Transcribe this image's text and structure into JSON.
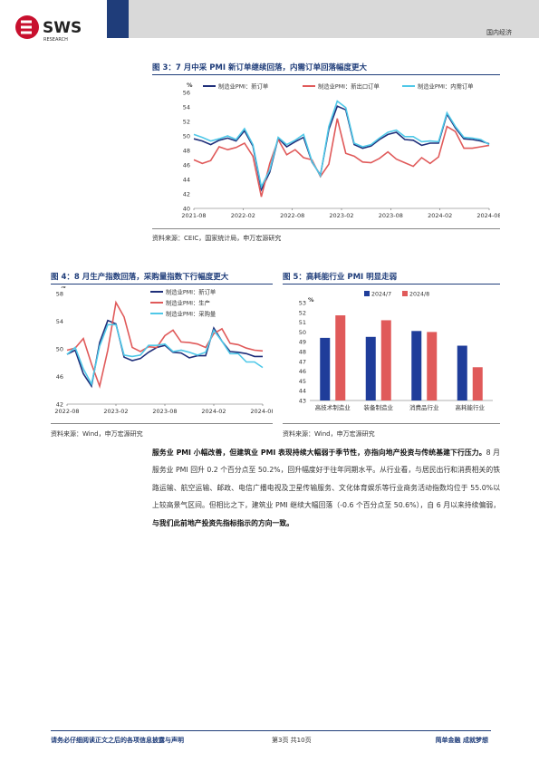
{
  "header": {
    "logo_text": "SWS",
    "logo_sub": "RESEARCH",
    "section": "国内经济"
  },
  "fig3": {
    "title": "图 3：7 月中采 PMI 新订单继续回落，内需订单回落幅度更大",
    "source": "资料来源：CEIC，国家统计局，申万宏源研究"
  },
  "fig4": {
    "title": "图 4：8 月生产指数回落，采购量指数下行幅度更大",
    "source": "资料来源：Wind，申万宏源研究"
  },
  "fig5": {
    "title": "图 5：高耗能行业 PMI 明显走弱",
    "source": "资料来源：Wind，申万宏源研究"
  },
  "body": {
    "lead": "服务业 PMI 小幅改善，但建筑业 PMI 表现持续大幅弱于季节性，亦指向地产投资与传统基建下行压力。",
    "middle": "8 月服务业 PMI 回升 0.2 个百分点至 50.2%，回升幅度好于往年同期水平。从行业看，与居民出行和消费相关的铁路运输、航空运输、邮政、电信广播电视及卫星传输服务、文化体育娱乐等行业商务活动指数均位于 55.0%以上较高景气区间。但相比之下，建筑业 PMI 继续大幅回落（-0.6 个百分点至 50.6%），自 6 月以来持续偏弱，",
    "tail": "与我们此前地产投资先指标指示的方向一致。"
  },
  "footer": {
    "left": "请务必仔细阅读正文之后的各项信息披露与声明",
    "center": "第3页 共10页",
    "right": "简单金融 成就梦想"
  },
  "colors": {
    "navy": "#1f2f7a",
    "red": "#e05a5a",
    "cyan": "#4fc8e8",
    "blue_bar": "#1f3d9a"
  },
  "chart_data": [
    {
      "type": "line",
      "unit": "%",
      "x_ticks": [
        "2021-08",
        "2022-02",
        "2022-08",
        "2023-02",
        "2023-08",
        "2024-02",
        "2024-08"
      ],
      "ylim": [
        40,
        56
      ],
      "y_ticks": [
        40,
        42,
        44,
        46,
        48,
        50,
        52,
        54,
        56
      ],
      "series": [
        {
          "name": "制造业PMI：新订单",
          "color": "#1f2f7a",
          "values": [
            49.6,
            49.3,
            48.8,
            49.4,
            49.7,
            49.3,
            50.7,
            48.6,
            42.6,
            45.0,
            49.7,
            48.5,
            49.2,
            49.8,
            46.4,
            44.6,
            50.9,
            54.1,
            53.6,
            48.8,
            48.3,
            48.6,
            49.5,
            50.2,
            50.5,
            49.5,
            49.4,
            48.7,
            49.0,
            49.0,
            53.0,
            51.1,
            49.6,
            49.5,
            49.3,
            48.9
          ]
        },
        {
          "name": "制造业PMI：新出口订单",
          "color": "#e05a5a",
          "values": [
            46.7,
            46.2,
            46.6,
            48.5,
            48.1,
            48.4,
            49.0,
            47.2,
            41.6,
            46.2,
            49.5,
            47.4,
            48.1,
            47.0,
            46.7,
            44.4,
            46.1,
            52.4,
            47.6,
            47.2,
            46.4,
            46.3,
            46.9,
            47.8,
            46.8,
            46.3,
            45.8,
            47.0,
            46.2,
            47.1,
            51.3,
            50.6,
            48.3,
            48.3,
            48.5,
            48.7
          ]
        },
        {
          "name": "制造业PMI：内需订单",
          "color": "#4fc8e8",
          "values": [
            50.2,
            49.8,
            49.3,
            49.6,
            50.0,
            49.5,
            51.0,
            48.8,
            43.0,
            45.3,
            49.8,
            48.8,
            49.4,
            50.2,
            46.5,
            44.5,
            51.3,
            54.8,
            53.9,
            49.0,
            48.5,
            48.8,
            49.7,
            50.5,
            50.8,
            49.9,
            49.9,
            49.2,
            49.3,
            49.2,
            53.2,
            51.3,
            49.8,
            49.7,
            49.5,
            48.8
          ]
        }
      ]
    },
    {
      "type": "line",
      "unit": "%",
      "x_ticks": [
        "2022-08",
        "2023-02",
        "2023-08",
        "2024-02",
        "2024-08"
      ],
      "ylim": [
        42,
        58
      ],
      "y_ticks": [
        42,
        46,
        50,
        54,
        58
      ],
      "series": [
        {
          "name": "制造业PMI：新订单",
          "color": "#1f2f7a",
          "values": [
            49.2,
            49.8,
            46.4,
            44.6,
            50.9,
            54.1,
            53.6,
            48.8,
            48.3,
            48.6,
            49.5,
            50.2,
            50.5,
            49.5,
            49.4,
            48.7,
            49.0,
            49.0,
            53.0,
            51.1,
            49.6,
            49.5,
            49.3,
            48.9,
            48.9
          ]
        },
        {
          "name": "制造业PMI：生产",
          "color": "#e05a5a",
          "values": [
            49.8,
            50.1,
            51.5,
            47.8,
            44.6,
            49.8,
            56.7,
            54.6,
            50.2,
            49.6,
            50.3,
            50.2,
            51.9,
            52.7,
            51.0,
            50.9,
            50.7,
            50.2,
            52.2,
            52.9,
            50.8,
            50.6,
            50.1,
            49.8,
            49.7
          ]
        },
        {
          "name": "制造业PMI：采购量",
          "color": "#4fc8e8",
          "values": [
            49.2,
            50.2,
            47.1,
            44.9,
            50.4,
            53.5,
            53.5,
            49.1,
            48.9,
            49.1,
            50.5,
            50.5,
            50.7,
            49.6,
            49.8,
            49.5,
            49.1,
            49.5,
            52.7,
            51.1,
            49.3,
            49.3,
            48.1,
            48.1,
            47.3
          ]
        }
      ]
    },
    {
      "type": "bar",
      "unit": "%",
      "categories": [
        "高技术制造业",
        "装备制造业",
        "消费品行业",
        "高耗能行业"
      ],
      "ylim": [
        43,
        53
      ],
      "y_ticks": [
        43,
        44,
        45,
        46,
        47,
        48,
        49,
        50,
        51,
        52,
        53
      ],
      "series": [
        {
          "name": "2024/7",
          "color": "#1f3d9a",
          "values": [
            49.4,
            49.5,
            50.1,
            48.6
          ]
        },
        {
          "name": "2024/8",
          "color": "#e05a5a",
          "values": [
            51.7,
            51.2,
            50.0,
            46.4
          ]
        }
      ]
    }
  ]
}
